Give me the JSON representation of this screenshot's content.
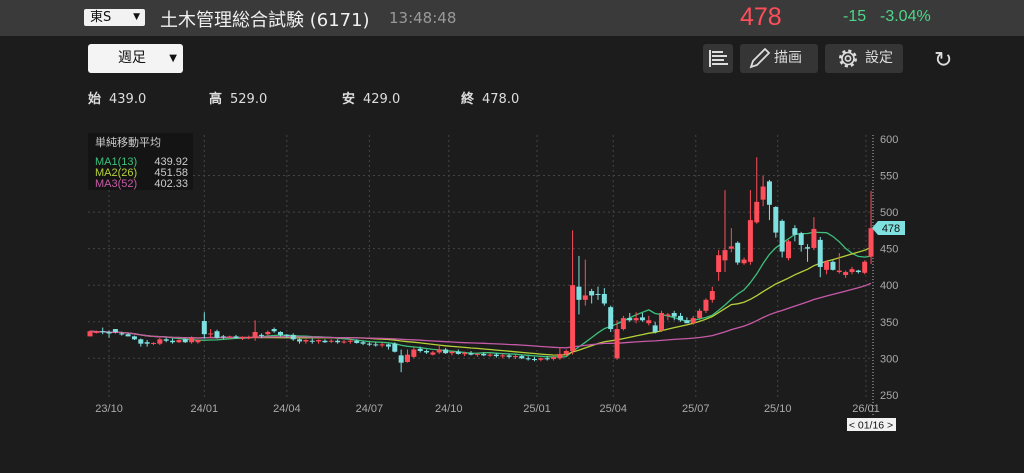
{
  "header": {
    "market": "東S",
    "title": "土木管理総合試験 (6171)",
    "time": "13:48:48",
    "price": "478",
    "change": "-15",
    "change_pct": "-3.04%"
  },
  "toolbar": {
    "period": "週足",
    "draw_label": "描画",
    "settings_label": "設定",
    "icons": [
      "list-icon",
      "pencil-icon",
      "gear-icon",
      "refresh-icon"
    ]
  },
  "ohlc": {
    "open_label": "始",
    "open": "439.0",
    "high_label": "高",
    "high": "529.0",
    "low_label": "安",
    "low": "429.0",
    "close_label": "終",
    "close": "478.0"
  },
  "legend": {
    "title": "単純移動平均",
    "items": [
      {
        "name": "MA1(13)",
        "value": "439.92",
        "color": "#3cc07a"
      },
      {
        "name": "MA2(26)",
        "value": "451.58",
        "color": "#b5d13a"
      },
      {
        "name": "MA3(52)",
        "value": "402.33",
        "color": "#c65aa8"
      }
    ]
  },
  "colors": {
    "up": "#ff4d5a",
    "down": "#7fe0e0",
    "grid": "#444444",
    "axis_text": "#aaaaaa"
  },
  "cursor": {
    "date_label": "< 01/16 >",
    "price_label": "478"
  },
  "chart_data": {
    "type": "candlestick",
    "interval": "weekly",
    "ylim": [
      250,
      600
    ],
    "yticks": [
      250,
      300,
      350,
      400,
      450,
      500,
      550,
      600
    ],
    "xticks": [
      {
        "label": "23/10",
        "index": 3
      },
      {
        "label": "24/01",
        "index": 18
      },
      {
        "label": "24/04",
        "index": 31
      },
      {
        "label": "24/07",
        "index": 44
      },
      {
        "label": "24/10",
        "index": 56.5
      },
      {
        "label": "25/01",
        "index": 70.4
      },
      {
        "label": "25/04",
        "index": 82.4
      },
      {
        "label": "25/07",
        "index": 95.4
      },
      {
        "label": "25/10",
        "index": 108.3
      },
      {
        "label": "26/01",
        "index": 122.2
      }
    ],
    "grid": true,
    "ohlc": [
      [
        330,
        338,
        330,
        337
      ],
      [
        336,
        338,
        334,
        336
      ],
      [
        337,
        342,
        333,
        336
      ],
      [
        336,
        338,
        328,
        334
      ],
      [
        340,
        340,
        334,
        336
      ],
      [
        334,
        336,
        331,
        333
      ],
      [
        333,
        334,
        330,
        330
      ],
      [
        330,
        331,
        325,
        326
      ],
      [
        326,
        327,
        316,
        320
      ],
      [
        322,
        325,
        316,
        320
      ],
      [
        320,
        322,
        318,
        321
      ],
      [
        320,
        328,
        318,
        326
      ],
      [
        326,
        328,
        322,
        324
      ],
      [
        324,
        327,
        320,
        322
      ],
      [
        322,
        326,
        321,
        325
      ],
      [
        326,
        327,
        321,
        322
      ],
      [
        322,
        330,
        320,
        328
      ],
      [
        322,
        326,
        320,
        325
      ],
      [
        351,
        363,
        327,
        333
      ],
      [
        333,
        340,
        328,
        334
      ],
      [
        337,
        339,
        327,
        328
      ],
      [
        330,
        332,
        326,
        329
      ],
      [
        329,
        331,
        326,
        330
      ],
      [
        330,
        332,
        327,
        328
      ],
      [
        328,
        330,
        325,
        329
      ],
      [
        328,
        331,
        326,
        329
      ],
      [
        328,
        352,
        324,
        336
      ],
      [
        332,
        334,
        328,
        331
      ],
      [
        333,
        338,
        330,
        336
      ],
      [
        340,
        342,
        335,
        337
      ],
      [
        336,
        337,
        330,
        332
      ],
      [
        332,
        333,
        328,
        331
      ],
      [
        332,
        334,
        324,
        326
      ],
      [
        326,
        327,
        320,
        323
      ],
      [
        323,
        326,
        320,
        325
      ],
      [
        324,
        327,
        320,
        323
      ],
      [
        323,
        326,
        320,
        325
      ],
      [
        324,
        326,
        321,
        322
      ],
      [
        323,
        326,
        321,
        324
      ],
      [
        324,
        326,
        320,
        322
      ],
      [
        322,
        325,
        320,
        323
      ],
      [
        323,
        326,
        320,
        324
      ],
      [
        324,
        326,
        320,
        321
      ],
      [
        322,
        324,
        318,
        320
      ],
      [
        320,
        322,
        317,
        319
      ],
      [
        319,
        322,
        316,
        318
      ],
      [
        318,
        321,
        315,
        319
      ],
      [
        319,
        320,
        312,
        316
      ],
      [
        320,
        322,
        308,
        309
      ],
      [
        304,
        312,
        281,
        294
      ],
      [
        295,
        312,
        294,
        305
      ],
      [
        302,
        315,
        300,
        312
      ],
      [
        313,
        316,
        308,
        310
      ],
      [
        310,
        312,
        306,
        308
      ],
      [
        305,
        310,
        304,
        308
      ],
      [
        308,
        318,
        306,
        312
      ],
      [
        312,
        314,
        306,
        307
      ],
      [
        307,
        310,
        304,
        309
      ],
      [
        309,
        312,
        305,
        306
      ],
      [
        306,
        309,
        303,
        307
      ],
      [
        307,
        310,
        304,
        305
      ],
      [
        305,
        308,
        302,
        306
      ],
      [
        306,
        308,
        303,
        304
      ],
      [
        304,
        307,
        302,
        305
      ],
      [
        305,
        307,
        301,
        303
      ],
      [
        303,
        306,
        300,
        304
      ],
      [
        304,
        306,
        300,
        302
      ],
      [
        302,
        305,
        299,
        303
      ],
      [
        303,
        305,
        299,
        300
      ],
      [
        300,
        303,
        297,
        299
      ],
      [
        299,
        302,
        296,
        298
      ],
      [
        298,
        301,
        296,
        300
      ],
      [
        300,
        303,
        297,
        299
      ],
      [
        299,
        305,
        297,
        302
      ],
      [
        300,
        315,
        298,
        306
      ],
      [
        306,
        312,
        303,
        310
      ],
      [
        310,
        475,
        305,
        400
      ],
      [
        398,
        440,
        360,
        380
      ],
      [
        380,
        435,
        372,
        386
      ],
      [
        392,
        395,
        375,
        386
      ],
      [
        388,
        398,
        380,
        387
      ],
      [
        388,
        396,
        372,
        375
      ],
      [
        370,
        372,
        336,
        340
      ],
      [
        300,
        352,
        298,
        340
      ],
      [
        340,
        358,
        338,
        355
      ],
      [
        355,
        362,
        350,
        352
      ],
      [
        352,
        363,
        348,
        355
      ],
      [
        356,
        362,
        350,
        352
      ],
      [
        348,
        358,
        345,
        352
      ],
      [
        345,
        350,
        334,
        336
      ],
      [
        338,
        365,
        336,
        362
      ],
      [
        358,
        362,
        352,
        360
      ],
      [
        362,
        365,
        352,
        357
      ],
      [
        358,
        362,
        350,
        352
      ],
      [
        352,
        356,
        348,
        348
      ],
      [
        348,
        358,
        346,
        355
      ],
      [
        355,
        368,
        352,
        365
      ],
      [
        365,
        382,
        362,
        380
      ],
      [
        380,
        398,
        376,
        392
      ],
      [
        418,
        448,
        406,
        441
      ],
      [
        434,
        530,
        418,
        448
      ],
      [
        450,
        478,
        445,
        453
      ],
      [
        458,
        460,
        428,
        431
      ],
      [
        430,
        438,
        428,
        435
      ],
      [
        432,
        530,
        428,
        489
      ],
      [
        486,
        575,
        484,
        514
      ],
      [
        517,
        550,
        508,
        535
      ],
      [
        542,
        544,
        489,
        510
      ],
      [
        507,
        508,
        465,
        472
      ],
      [
        488,
        490,
        438,
        446
      ],
      [
        437,
        462,
        434,
        460
      ],
      [
        478,
        482,
        460,
        469
      ],
      [
        471,
        473,
        446,
        455
      ],
      [
        452,
        456,
        432,
        450
      ],
      [
        451,
        493,
        448,
        477
      ],
      [
        462,
        466,
        411,
        425
      ],
      [
        421,
        434,
        415,
        432
      ],
      [
        432,
        434,
        420,
        421
      ],
      [
        418,
        444,
        416,
        420
      ],
      [
        414,
        420,
        410,
        418
      ],
      [
        418,
        425,
        415,
        422
      ],
      [
        420,
        421,
        416,
        418
      ],
      [
        417,
        434,
        415,
        432
      ],
      [
        439,
        529,
        429,
        478
      ]
    ],
    "moving_averages": [
      {
        "name": "MA1(13)",
        "period": 13
      },
      {
        "name": "MA2(26)",
        "period": 26
      },
      {
        "name": "MA3(52)",
        "period": 52
      }
    ]
  }
}
